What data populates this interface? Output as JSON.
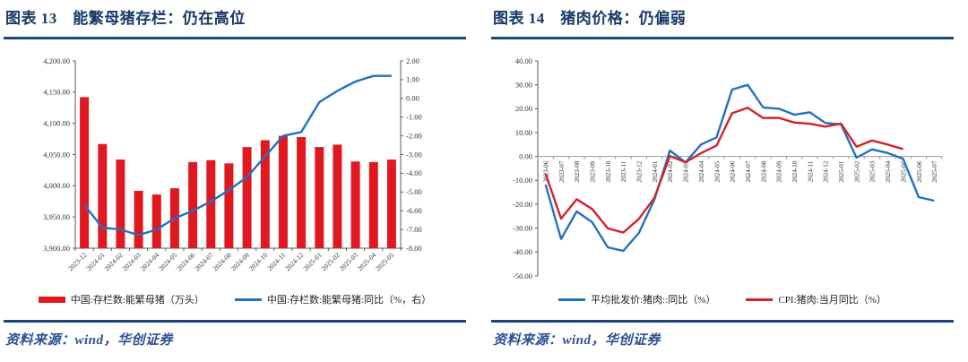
{
  "source_brand_color": "#1d4478",
  "figures": [
    {
      "title": "图表 13　能繁母猪存栏：仍在高位",
      "source": "资料来源：wind，华创证券",
      "chart_data": {
        "type": "bar",
        "subtype": "bar+line dual axis",
        "categories": [
          "2023-12",
          "2024-01",
          "2024-02",
          "2024-03",
          "2024-04",
          "2024-05",
          "2024-06",
          "2024-07",
          "2024-08",
          "2024-09",
          "2024-10",
          "2024-11",
          "2024-12",
          "2025-01",
          "2025-02",
          "2025-03",
          "2025-04",
          "2025-05"
        ],
        "series": [
          {
            "name": "中国:存栏数:能繁母猪（万头）",
            "type": "bar",
            "axis": "left",
            "color": "#e0181f",
            "values": [
              4142,
              4067,
              4042,
              3992,
              3986,
              3996,
              4038,
              4041,
              4036,
              4062,
              4073,
              4080,
              4078,
              4062,
              4066,
              4039,
              4038,
              4042
            ]
          },
          {
            "name": "中国:存栏数:能繁母猪:同比（%，右）",
            "type": "line",
            "axis": "right",
            "color": "#2071c4",
            "values": [
              -5.7,
              -6.9,
              -7.0,
              -7.3,
              -7.0,
              -6.4,
              -6.0,
              -5.5,
              -4.9,
              -4.2,
              -3.1,
              -2.0,
              -1.8,
              -0.2,
              0.4,
              0.9,
              1.2,
              1.2
            ]
          }
        ],
        "left_axis": {
          "min": 3900,
          "max": 4200,
          "step": 50,
          "ticks": [
            "4,200.00",
            "4,150.00",
            "4,100.00",
            "4,050.00",
            "4,000.00",
            "3,950.00",
            "3,900.00"
          ]
        },
        "right_axis": {
          "min": -8,
          "max": 2,
          "step": 1,
          "ticks": [
            "2.00",
            "1.00",
            "0.00",
            "-1.00",
            "-2.00",
            "-3.00",
            "-4.00",
            "-5.00",
            "-6.00",
            "-7.00",
            "-8.00"
          ]
        },
        "x_label_rotation": -45,
        "grid": false,
        "legend_position": "bottom"
      }
    },
    {
      "title": "图表 14　猪肉价格：仍偏弱",
      "source": "资料来源：wind，华创证券",
      "chart_data": {
        "type": "line",
        "categories": [
          "2023-06",
          "2023-07",
          "2023-08",
          "2023-09",
          "2023-10",
          "2023-11",
          "2023-12",
          "2024-01",
          "2024-02",
          "2024-03",
          "2024-04",
          "2024-05",
          "2024-06",
          "2024-07",
          "2024-08",
          "2024-09",
          "2024-10",
          "2024-11",
          "2024-12",
          "2025-01",
          "2025-02",
          "2025-03",
          "2025-04",
          "2025-05",
          "2025-06",
          "2025-07"
        ],
        "series": [
          {
            "name": "平均批发价:猪肉::同比（%）",
            "type": "line",
            "color": "#2071c4",
            "values": [
              -11.8,
              -34.5,
              -23.0,
              -27.5,
              -38.0,
              -39.5,
              -32.0,
              -18.0,
              2.5,
              -2.5,
              5.0,
              8.0,
              28.0,
              30.0,
              20.5,
              20.0,
              17.5,
              18.5,
              14.0,
              13.5,
              -0.5,
              3.0,
              1.5,
              -1.0,
              -17.0,
              -18.5
            ]
          },
          {
            "name": "CPI:猪肉:当月同比（%）",
            "type": "line",
            "color": "#d2222a",
            "values": [
              -7.2,
              -26.0,
              -17.9,
              -22.0,
              -30.1,
              -31.8,
              -26.1,
              -17.3,
              0.2,
              -2.4,
              1.4,
              4.6,
              18.1,
              20.4,
              16.1,
              16.2,
              14.2,
              13.7,
              12.5,
              13.8,
              4.1,
              6.7,
              5.0,
              3.1,
              null,
              null
            ]
          }
        ],
        "y_axis": {
          "min": -50,
          "max": 40,
          "step": 10,
          "ticks": [
            "40.00",
            "30.00",
            "20.00",
            "10.00",
            "0.00",
            "-10.00",
            "-20.00",
            "-30.00",
            "-40.00",
            "-50.00"
          ]
        },
        "x_label_rotation": -90,
        "x_labels_at_zero_line": true,
        "grid": false,
        "legend_position": "bottom"
      }
    }
  ]
}
